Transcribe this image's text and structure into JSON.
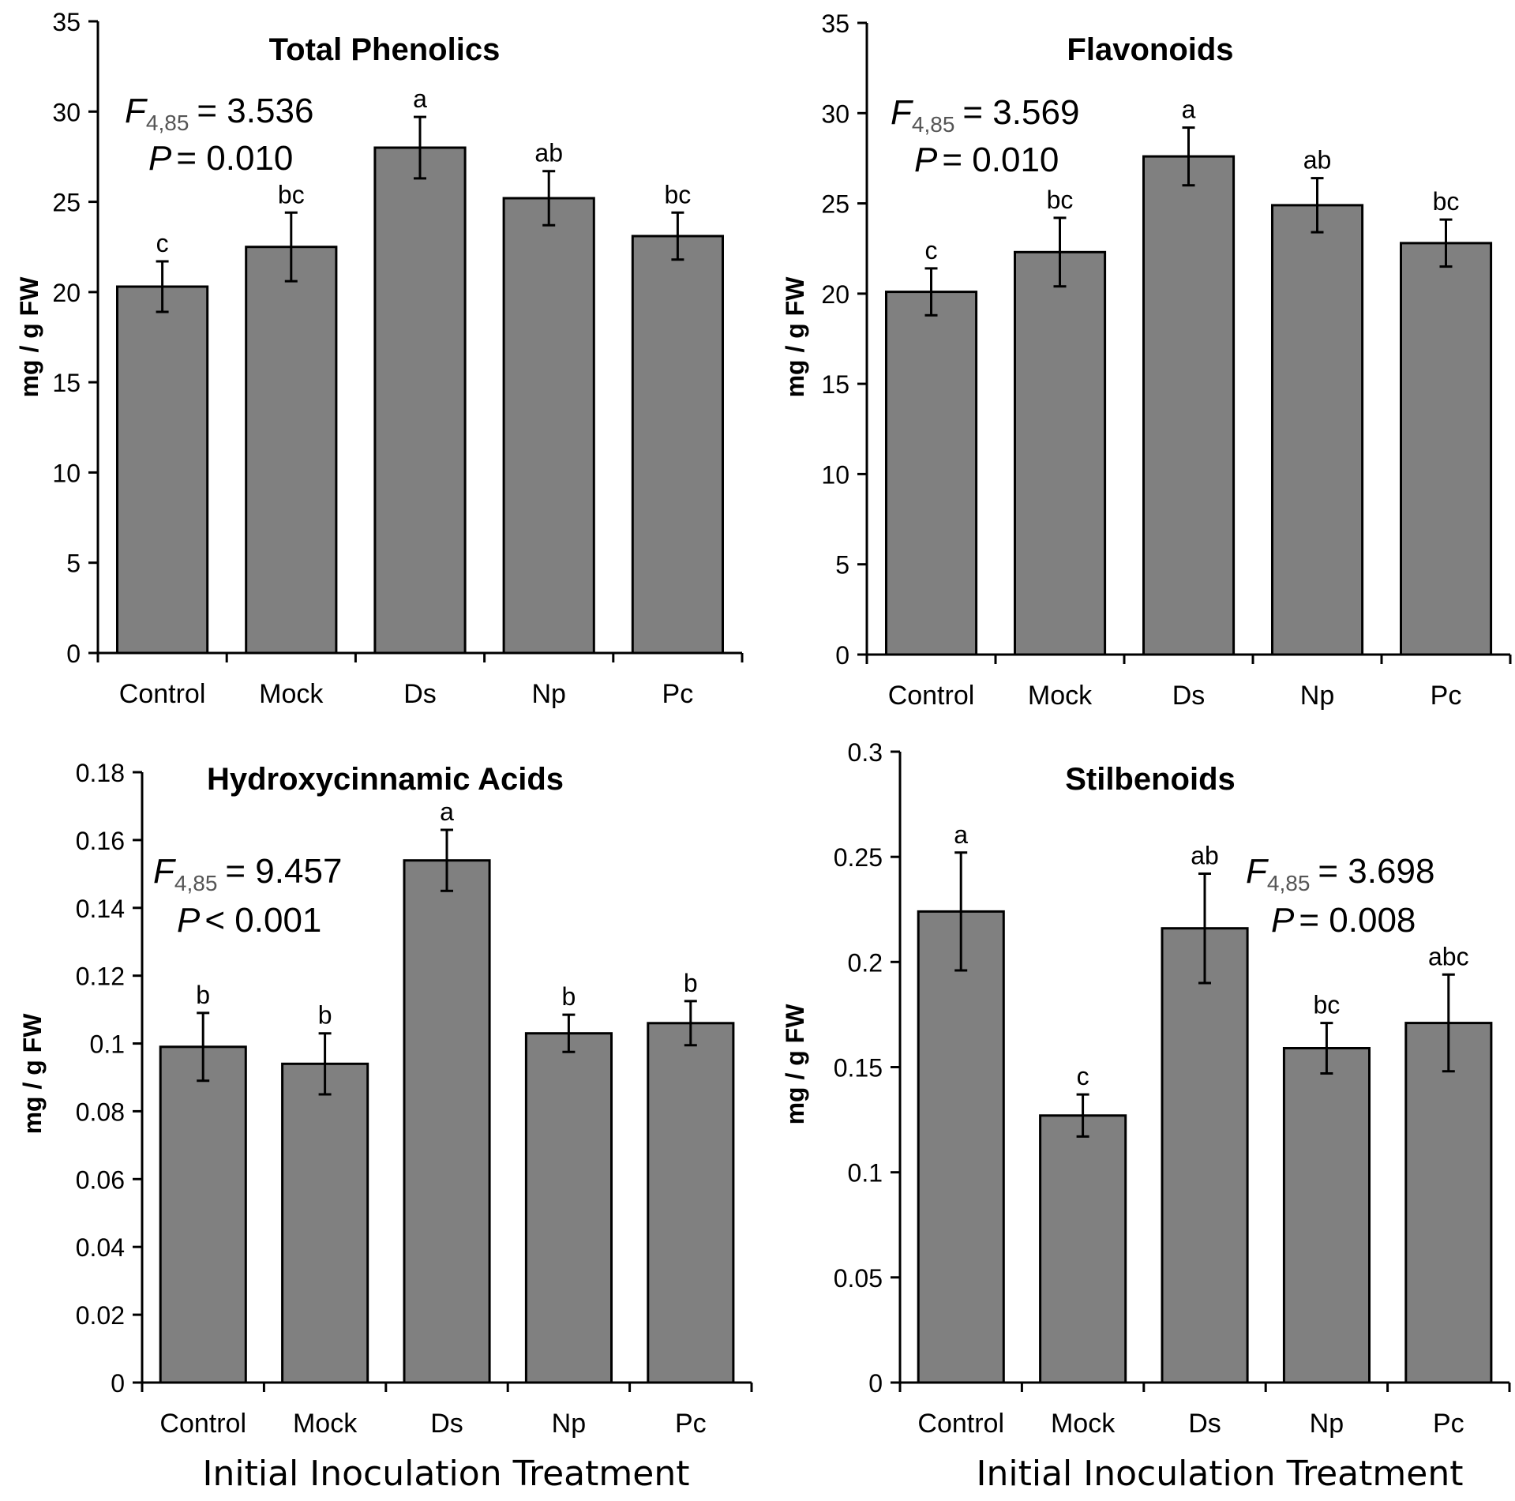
{
  "chart_data": [
    {
      "type": "bar",
      "title": "Total Phenolics",
      "ylabel": "mg / g FW",
      "xlabel": "",
      "ylim": [
        0,
        35
      ],
      "ytick_step": 5,
      "ytick_labels": [
        "0",
        "5",
        "10",
        "15",
        "20",
        "25",
        "30",
        "35"
      ],
      "categories": [
        "Control",
        "Mock",
        "Ds",
        "Np",
        "Pc"
      ],
      "values": [
        20.3,
        22.5,
        28.0,
        25.2,
        23.1
      ],
      "errors": [
        1.4,
        1.9,
        1.7,
        1.5,
        1.3
      ],
      "letters": [
        "c",
        "bc",
        "a",
        "ab",
        "bc"
      ],
      "stat": {
        "f_symbol": "F",
        "f_sub": "4,85",
        "f_value": "= 3.536",
        "p_symbol": "P",
        "p_value": "= 0.010"
      }
    },
    {
      "type": "bar",
      "title": "Flavonoids",
      "ylabel": "mg / g FW",
      "xlabel": "",
      "ylim": [
        0,
        35
      ],
      "ytick_step": 5,
      "ytick_labels": [
        "0",
        "5",
        "10",
        "15",
        "20",
        "25",
        "30",
        "35"
      ],
      "categories": [
        "Control",
        "Mock",
        "Ds",
        "Np",
        "Pc"
      ],
      "values": [
        20.1,
        22.3,
        27.6,
        24.9,
        22.8
      ],
      "errors": [
        1.3,
        1.9,
        1.6,
        1.5,
        1.3
      ],
      "letters": [
        "c",
        "bc",
        "a",
        "ab",
        "bc"
      ],
      "stat": {
        "f_symbol": "F",
        "f_sub": "4,85",
        "f_value": "= 3.569",
        "p_symbol": "P",
        "p_value": "= 0.010"
      }
    },
    {
      "type": "bar",
      "title": "Hydroxycinnamic Acids",
      "ylabel": "mg / g FW",
      "xlabel": "Initial Inoculation Treatment",
      "ylim": [
        0,
        0.18
      ],
      "ytick_step": 0.02,
      "ytick_labels": [
        "0",
        "0.02",
        "0.04",
        "0.06",
        "0.08",
        "0.1",
        "0.12",
        "0.14",
        "0.16",
        "0.18"
      ],
      "categories": [
        "Control",
        "Mock",
        "Ds",
        "Np",
        "Pc"
      ],
      "values": [
        0.099,
        0.094,
        0.154,
        0.103,
        0.106
      ],
      "errors": [
        0.01,
        0.009,
        0.009,
        0.0055,
        0.0065
      ],
      "letters": [
        "b",
        "b",
        "a",
        "b",
        "b"
      ],
      "stat": {
        "f_symbol": "F",
        "f_sub": "4,85",
        "f_value": "= 9.457",
        "p_symbol": "P",
        "p_value": "< 0.001"
      }
    },
    {
      "type": "bar",
      "title": "Stilbenoids",
      "ylabel": "mg / g FW",
      "xlabel": "Initial Inoculation Treatment",
      "ylim": [
        0,
        0.3
      ],
      "ytick_step": 0.05,
      "ytick_labels": [
        "0",
        "0.05",
        "0.1",
        "0.15",
        "0.2",
        "0.25",
        "0.3"
      ],
      "categories": [
        "Control",
        "Mock",
        "Ds",
        "Np",
        "Pc"
      ],
      "values": [
        0.224,
        0.127,
        0.216,
        0.159,
        0.171
      ],
      "errors": [
        0.028,
        0.01,
        0.026,
        0.012,
        0.023
      ],
      "letters": [
        "a",
        "c",
        "ab",
        "bc",
        "abc"
      ],
      "stat": {
        "f_symbol": "F",
        "f_sub": "4,85",
        "f_value": "= 3.698",
        "p_symbol": "P",
        "p_value": "= 0.008"
      }
    }
  ]
}
